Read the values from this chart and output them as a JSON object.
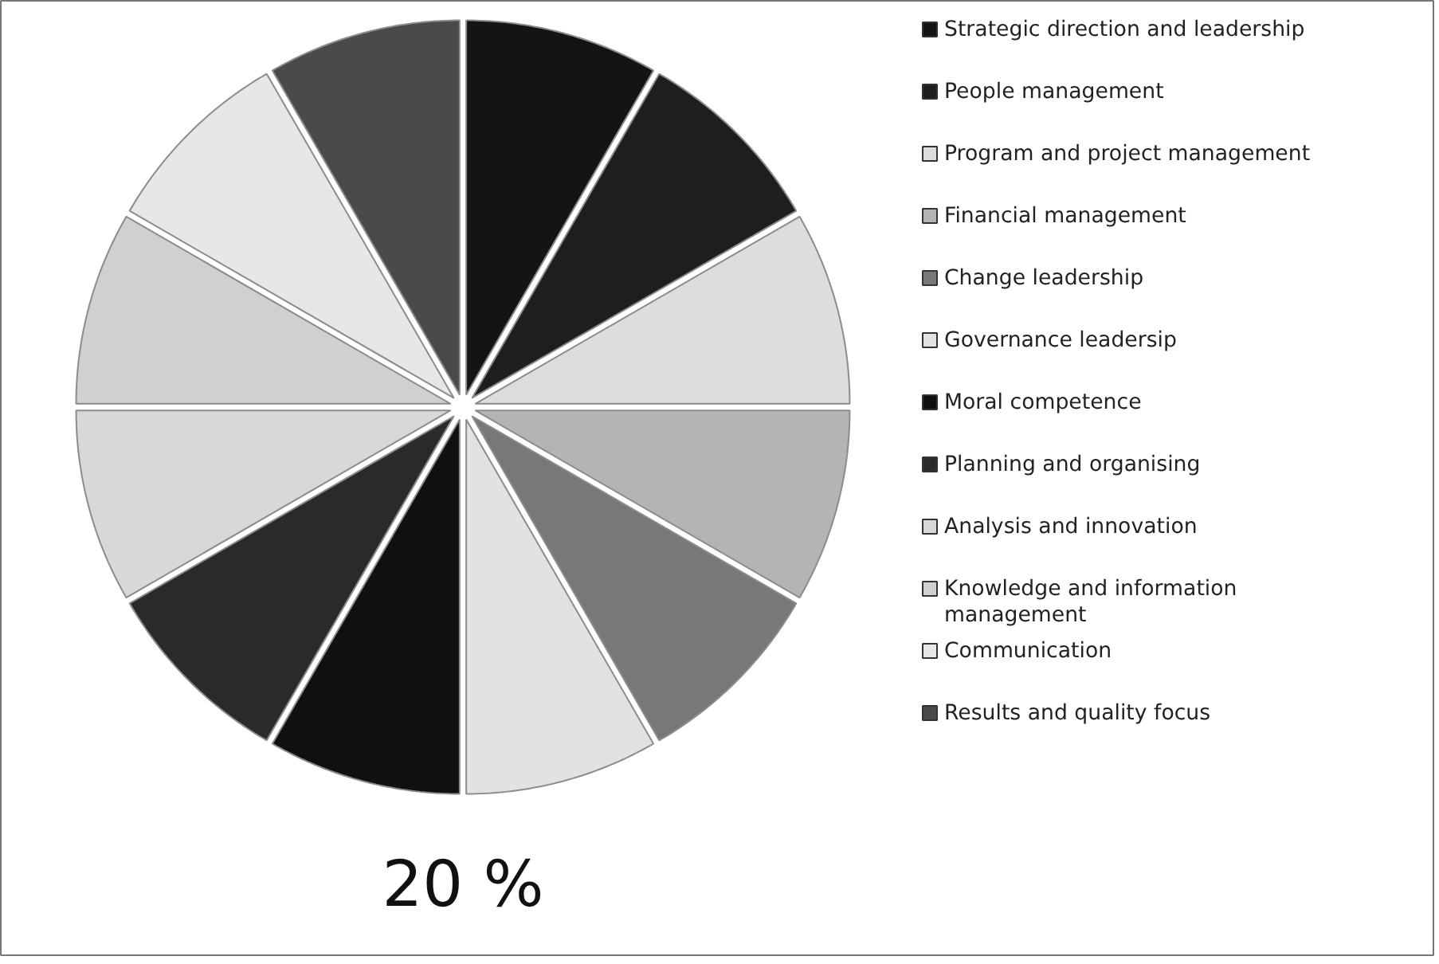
{
  "chart_data": {
    "type": "pie",
    "categories": [
      "Strategic direction and leadership",
      "People management",
      "Program and project management",
      "Financial management",
      "Change leadership",
      "Governance leadersip",
      "Moral competence",
      "Planning and organising",
      "Analysis and innovation",
      "Knowledge and information management",
      "Communication",
      "Results and quality focus"
    ],
    "values": [
      8.33,
      8.33,
      8.33,
      8.33,
      8.33,
      8.33,
      8.33,
      8.33,
      8.33,
      8.33,
      8.33,
      8.33
    ],
    "colors": [
      "#141414",
      "#1e1e1e",
      "#dddddd",
      "#b4b4b4",
      "#787878",
      "#e2e2e2",
      "#101010",
      "#2a2a2a",
      "#d8d8d8",
      "#d0d0d0",
      "#e7e7e7",
      "#4a4a4a"
    ],
    "legend": "right",
    "annotations": [
      "20 %"
    ]
  }
}
